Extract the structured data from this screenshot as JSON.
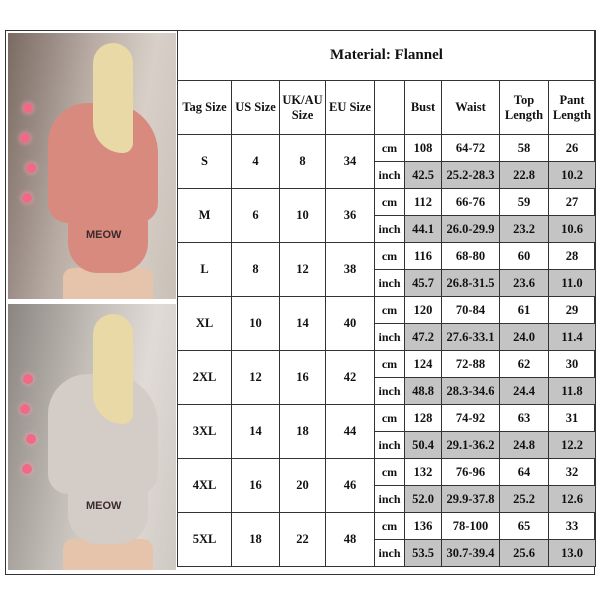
{
  "photos": [
    {
      "name": "pink-flannel-pajama-photo",
      "hoodie_color": "#d88a7e",
      "lettering": "MEOW"
    },
    {
      "name": "grey-flannel-pajama-photo",
      "hoodie_color": "#d4ccc6",
      "lettering": "MEOW"
    }
  ],
  "table": {
    "title": "Material: Flannel",
    "headers": [
      "Tag Size",
      "US Size",
      "UK/AU Size",
      "EU Size",
      "",
      "Bust",
      "Waist",
      "Top Length",
      "Pant Length"
    ],
    "units": [
      "cm",
      "inch"
    ],
    "shade_color": "#c4c4c4",
    "rows": [
      {
        "tag": "S",
        "us": "4",
        "uk": "8",
        "eu": "34",
        "cm": [
          "108",
          "64-72",
          "58",
          "26"
        ],
        "inch": [
          "42.5",
          "25.2-28.3",
          "22.8",
          "10.2"
        ]
      },
      {
        "tag": "M",
        "us": "6",
        "uk": "10",
        "eu": "36",
        "cm": [
          "112",
          "66-76",
          "59",
          "27"
        ],
        "inch": [
          "44.1",
          "26.0-29.9",
          "23.2",
          "10.6"
        ]
      },
      {
        "tag": "L",
        "us": "8",
        "uk": "12",
        "eu": "38",
        "cm": [
          "116",
          "68-80",
          "60",
          "28"
        ],
        "inch": [
          "45.7",
          "26.8-31.5",
          "23.6",
          "11.0"
        ]
      },
      {
        "tag": "XL",
        "us": "10",
        "uk": "14",
        "eu": "40",
        "cm": [
          "120",
          "70-84",
          "61",
          "29"
        ],
        "inch": [
          "47.2",
          "27.6-33.1",
          "24.0",
          "11.4"
        ]
      },
      {
        "tag": "2XL",
        "us": "12",
        "uk": "16",
        "eu": "42",
        "cm": [
          "124",
          "72-88",
          "62",
          "30"
        ],
        "inch": [
          "48.8",
          "28.3-34.6",
          "24.4",
          "11.8"
        ]
      },
      {
        "tag": "3XL",
        "us": "14",
        "uk": "18",
        "eu": "44",
        "cm": [
          "128",
          "74-92",
          "63",
          "31"
        ],
        "inch": [
          "50.4",
          "29.1-36.2",
          "24.8",
          "12.2"
        ]
      },
      {
        "tag": "4XL",
        "us": "16",
        "uk": "20",
        "eu": "46",
        "cm": [
          "132",
          "76-96",
          "64",
          "32"
        ],
        "inch": [
          "52.0",
          "29.9-37.8",
          "25.2",
          "12.6"
        ]
      },
      {
        "tag": "5XL",
        "us": "18",
        "uk": "22",
        "eu": "48",
        "cm": [
          "136",
          "78-100",
          "65",
          "33"
        ],
        "inch": [
          "53.5",
          "30.7-39.4",
          "25.6",
          "13.0"
        ]
      }
    ]
  }
}
